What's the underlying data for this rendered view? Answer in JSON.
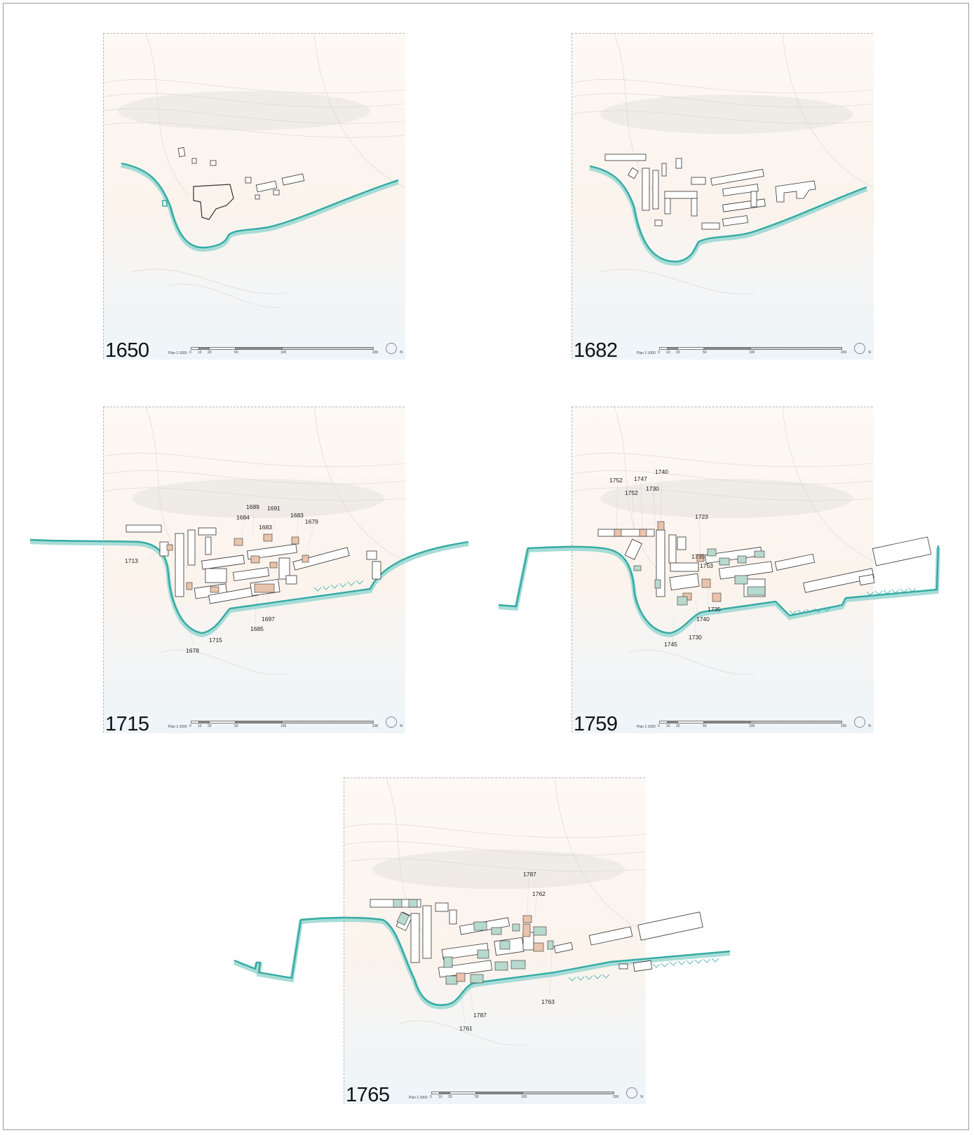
{
  "scale_title": "Plan 1:1000",
  "north_label": "N",
  "scale_ticks": [
    "0",
    "10",
    "20",
    "50",
    "100",
    "200"
  ],
  "colors": {
    "coast": "#33aba3",
    "coast_shadow": "#a7dcd7",
    "new_building": "#e9c3ab",
    "older_building": "#b8d9cd",
    "land": "#fbf3ec",
    "sea": "#eef5f9"
  },
  "maps": [
    {
      "year": "1650",
      "labels": []
    },
    {
      "year": "1682",
      "labels": []
    },
    {
      "year": "1715",
      "labels": [
        "1689",
        "1691",
        "1684",
        "1683",
        "1683",
        "1679",
        "1713",
        "1697",
        "1685",
        "1715",
        "1678"
      ]
    },
    {
      "year": "1759",
      "labels": [
        "1740",
        "1752",
        "1747",
        "1752",
        "1730",
        "1723",
        "1735",
        "1753",
        "1735",
        "1740",
        "1730",
        "1745"
      ]
    },
    {
      "year": "1765",
      "labels": [
        "1787",
        "1762",
        "1763",
        "1787",
        "1761"
      ]
    }
  ]
}
